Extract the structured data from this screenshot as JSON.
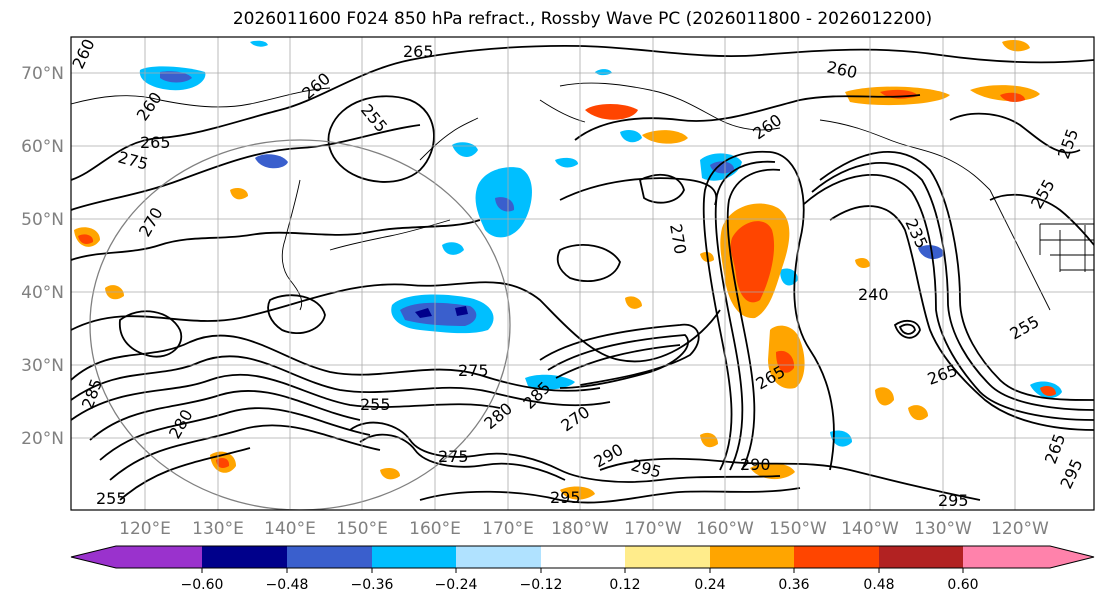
{
  "title": "2026011600 F024 850 hPa refract., Rossby Wave PC (2026011800 - 2026012200)",
  "lat_labels": [
    "70°N",
    "60°N",
    "50°N",
    "40°N",
    "30°N",
    "20°N"
  ],
  "lon_labels": [
    "120°E",
    "130°E",
    "140°E",
    "150°E",
    "160°E",
    "170°E",
    "180°W",
    "170°W",
    "160°W",
    "150°W",
    "140°W",
    "130°W",
    "120°W"
  ],
  "colorbar": {
    "ticks": [
      "−0.60",
      "−0.48",
      "−0.36",
      "−0.24",
      "−0.12",
      "0.12",
      "0.24",
      "0.36",
      "0.48",
      "0.60"
    ],
    "colors": [
      "#9a32cd",
      "#00008b",
      "#3a5fcd",
      "#00bfff",
      "#b0e2ff",
      "#ffffff",
      "#ffec8b",
      "#ffa500",
      "#ff4500",
      "#b22222",
      "#ff82ab"
    ]
  },
  "contour_labels": [
    "265",
    "260",
    "260",
    "265",
    "275",
    "255",
    "260",
    "270",
    "260",
    "255",
    "255",
    "235",
    "240",
    "275",
    "265",
    "255",
    "280",
    "285",
    "270",
    "280",
    "290",
    "295",
    "275",
    "290",
    "295",
    "295",
    "295",
    "255",
    "265",
    "285",
    "265",
    "260",
    "270",
    "255"
  ]
}
